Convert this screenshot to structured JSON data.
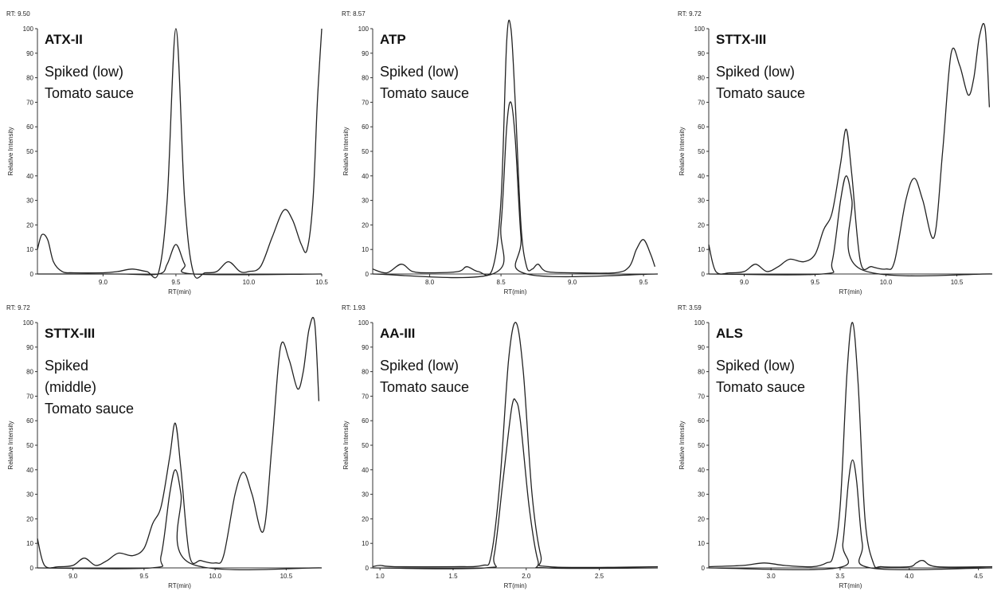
{
  "chart_data": [
    {
      "type": "line",
      "rt_label": "RT: 9.50",
      "name": "ATX-II",
      "lines": [
        "Spiked (low)",
        "Tomato sauce"
      ],
      "xlabel": "RT(min)",
      "ylabel": "Relative Intensity",
      "xlim": [
        8.55,
        10.5
      ],
      "ylim": [
        0,
        100
      ],
      "xticks": [
        "9.0",
        "9.5",
        "10.0",
        "10.5"
      ],
      "yticks": [
        "0",
        "10",
        "20",
        "30",
        "40",
        "50",
        "60",
        "70",
        "80",
        "90",
        "100"
      ],
      "series": [
        {
          "x": [
            8.55,
            8.58,
            8.62,
            8.66,
            8.72,
            8.8,
            9.0,
            9.1,
            9.2,
            9.3,
            9.38,
            9.44,
            9.5,
            9.56,
            9.62,
            9.7,
            9.78,
            9.86,
            9.94,
            10.0,
            10.08,
            10.16,
            10.24,
            10.3,
            10.36,
            10.4,
            10.44,
            10.47,
            10.5
          ],
          "y": [
            10,
            16,
            14,
            5,
            1,
            0.5,
            0.5,
            1,
            2,
            1,
            0.5,
            30,
            100,
            30,
            0.5,
            0.5,
            1,
            5,
            1,
            1,
            3,
            15,
            26,
            22,
            12,
            10,
            30,
            70,
            100
          ]
        },
        {
          "x": [
            8.55,
            9.1,
            9.38,
            9.44,
            9.5,
            9.56,
            9.62,
            10.5
          ],
          "y": [
            0,
            0,
            0,
            4,
            12,
            4,
            0,
            0
          ]
        }
      ]
    },
    {
      "type": "line",
      "rt_label": "RT: 8.57",
      "name": "ATP",
      "lines": [
        "Spiked (low)",
        "Tomato sauce"
      ],
      "xlabel": "RT(min)",
      "ylabel": "Relative Intensity",
      "xlim": [
        7.6,
        9.6
      ],
      "ylim": [
        0,
        100
      ],
      "xticks": [
        "8.0",
        "8.5",
        "9.0",
        "9.5"
      ],
      "yticks": [
        "0",
        "10",
        "20",
        "30",
        "40",
        "50",
        "60",
        "70",
        "80",
        "90",
        "100"
      ],
      "series": [
        {
          "x": [
            7.6,
            7.7,
            7.8,
            7.88,
            8.0,
            8.2,
            8.26,
            8.34,
            8.44,
            8.5,
            8.54,
            8.57,
            8.6,
            8.64,
            8.68,
            8.72,
            8.76,
            8.82,
            9.0,
            9.3,
            9.4,
            9.45,
            9.5,
            9.55,
            9.58
          ],
          "y": [
            2,
            0.5,
            4,
            1,
            0.5,
            1,
            3,
            1,
            2,
            30,
            95,
            100,
            70,
            20,
            3,
            2,
            4,
            1,
            0.5,
            0.5,
            3,
            10,
            14,
            8,
            3
          ]
        },
        {
          "x": [
            7.6,
            8.44,
            8.5,
            8.54,
            8.57,
            8.6,
            8.64,
            8.68,
            9.6
          ],
          "y": [
            0,
            0,
            20,
            60,
            70,
            55,
            15,
            0,
            0
          ]
        }
      ]
    },
    {
      "type": "line",
      "rt_label": "RT: 9.72",
      "name": "STTX-III",
      "lines": [
        "Spiked (low)",
        "Tomato sauce"
      ],
      "xlabel": "RT(min)",
      "ylabel": "Relative Intensity",
      "xlim": [
        8.75,
        10.75
      ],
      "ylim": [
        0,
        100
      ],
      "xticks": [
        "9.0",
        "9.5",
        "10.0",
        "10.5"
      ],
      "yticks": [
        "0",
        "10",
        "20",
        "30",
        "40",
        "50",
        "60",
        "70",
        "80",
        "90",
        "100"
      ],
      "series": [
        {
          "x": [
            8.75,
            8.8,
            8.9,
            9.0,
            9.08,
            9.16,
            9.24,
            9.32,
            9.42,
            9.5,
            9.56,
            9.62,
            9.68,
            9.72,
            9.76,
            9.82,
            9.9,
            10.0,
            10.06,
            10.14,
            10.2,
            10.26,
            10.34,
            10.4,
            10.46,
            10.52,
            10.58,
            10.62,
            10.66,
            10.7,
            10.73
          ],
          "y": [
            12,
            1,
            0.5,
            1,
            4,
            1,
            3,
            6,
            5,
            8,
            18,
            25,
            45,
            59,
            40,
            5,
            3,
            2,
            5,
            30,
            39,
            30,
            15,
            50,
            90,
            85,
            73,
            80,
            97,
            100,
            68
          ]
        },
        {
          "x": [
            8.75,
            9.55,
            9.62,
            9.68,
            9.72,
            9.76,
            9.82,
            10.75
          ],
          "y": [
            0,
            0,
            5,
            30,
            40,
            30,
            2,
            0
          ]
        }
      ]
    },
    {
      "type": "line",
      "rt_label": "RT: 9.72",
      "name": "STTX-III",
      "lines": [
        "Spiked",
        "(middle)",
        "Tomato sauce"
      ],
      "xlabel": "RT(min)",
      "ylabel": "Relative Intensity",
      "xlim": [
        8.75,
        10.75
      ],
      "ylim": [
        0,
        100
      ],
      "xticks": [
        "9.0",
        "9.5",
        "10.0",
        "10.5"
      ],
      "yticks": [
        "0",
        "10",
        "20",
        "30",
        "40",
        "50",
        "60",
        "70",
        "80",
        "90",
        "100"
      ],
      "series": [
        {
          "x": [
            8.75,
            8.8,
            8.9,
            9.0,
            9.08,
            9.16,
            9.24,
            9.32,
            9.42,
            9.5,
            9.56,
            9.62,
            9.68,
            9.72,
            9.76,
            9.82,
            9.9,
            10.0,
            10.06,
            10.14,
            10.2,
            10.26,
            10.34,
            10.4,
            10.46,
            10.52,
            10.58,
            10.62,
            10.66,
            10.7,
            10.73
          ],
          "y": [
            12,
            1,
            0.5,
            1,
            4,
            1,
            3,
            6,
            5,
            8,
            18,
            25,
            45,
            59,
            40,
            5,
            3,
            2,
            5,
            30,
            39,
            30,
            15,
            50,
            90,
            85,
            73,
            80,
            97,
            100,
            68
          ]
        },
        {
          "x": [
            8.75,
            9.55,
            9.62,
            9.68,
            9.72,
            9.76,
            9.82,
            10.75
          ],
          "y": [
            0,
            0,
            5,
            30,
            40,
            30,
            2,
            0
          ]
        }
      ]
    },
    {
      "type": "line",
      "rt_label": "RT: 1.93",
      "name": "AA-III",
      "lines": [
        "Spiked (low)",
        "Tomato sauce"
      ],
      "xlabel": "RT(min)",
      "ylabel": "Relative Intensity",
      "xlim": [
        0.95,
        2.9
      ],
      "ylim": [
        0,
        100
      ],
      "xticks": [
        "1.0",
        "1.5",
        "2.0",
        "2.5"
      ],
      "yticks": [
        "0",
        "10",
        "20",
        "30",
        "40",
        "50",
        "60",
        "70",
        "80",
        "90",
        "100"
      ],
      "series": [
        {
          "x": [
            0.95,
            1.0,
            1.1,
            1.5,
            1.7,
            1.76,
            1.82,
            1.88,
            1.93,
            1.98,
            2.04,
            2.1,
            2.16,
            2.9
          ],
          "y": [
            0.5,
            1,
            0.5,
            0.5,
            1,
            5,
            35,
            85,
            100,
            80,
            30,
            5,
            0.5,
            0.5
          ]
        },
        {
          "x": [
            0.95,
            1.72,
            1.78,
            1.84,
            1.9,
            1.93,
            1.96,
            2.02,
            2.08,
            2.14,
            2.9
          ],
          "y": [
            0,
            0,
            5,
            35,
            65,
            68,
            60,
            25,
            3,
            0,
            0
          ]
        }
      ]
    },
    {
      "type": "line",
      "rt_label": "RT: 3.59",
      "name": "ALS",
      "lines": [
        "Spiked (low)",
        "Tomato sauce"
      ],
      "xlabel": "RT(min)",
      "ylabel": "Relative Intensity",
      "xlim": [
        2.55,
        4.6
      ],
      "ylim": [
        0,
        100
      ],
      "xticks": [
        "3.0",
        "3.5",
        "4.0",
        "4.5"
      ],
      "yticks": [
        "0",
        "10",
        "20",
        "30",
        "40",
        "50",
        "60",
        "70",
        "80",
        "90",
        "100"
      ],
      "series": [
        {
          "x": [
            2.55,
            2.8,
            2.95,
            3.1,
            3.3,
            3.4,
            3.45,
            3.5,
            3.55,
            3.59,
            3.63,
            3.68,
            3.74,
            3.8,
            4.0,
            4.05,
            4.1,
            4.2,
            4.6
          ],
          "y": [
            0.5,
            1,
            2,
            1,
            0.5,
            2,
            5,
            25,
            80,
            100,
            75,
            20,
            2,
            0.5,
            0.5,
            2,
            3,
            0.5,
            0.5
          ]
        },
        {
          "x": [
            2.55,
            3.48,
            3.52,
            3.56,
            3.59,
            3.62,
            3.66,
            3.72,
            4.6
          ],
          "y": [
            0,
            0,
            10,
            35,
            44,
            35,
            10,
            0,
            0
          ]
        }
      ]
    }
  ]
}
